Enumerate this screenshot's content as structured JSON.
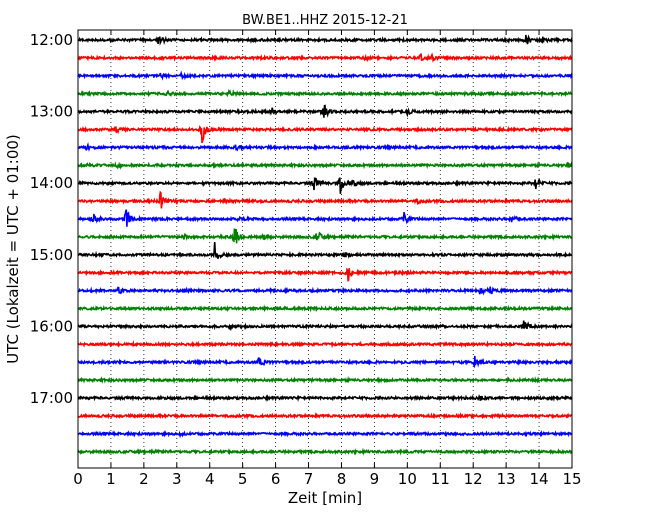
{
  "chart_data": {
    "type": "line",
    "title": "BW.BE1..HHZ 2015-12-21",
    "xlabel": "Zeit  [min]",
    "ylabel": "UTC (Lokalzeit = UTC + 01:00)",
    "xlim": [
      0,
      15
    ],
    "x_ticks": [
      "0",
      "1",
      "2",
      "3",
      "4",
      "5",
      "6",
      "7",
      "8",
      "9",
      "10",
      "11",
      "12",
      "13",
      "14",
      "15"
    ],
    "y_tick_labels": [
      "12:00",
      "13:00",
      "14:00",
      "15:00",
      "16:00",
      "17:00"
    ],
    "trace_colors": [
      "#000000",
      "#ff0000",
      "#0000ff",
      "#008000"
    ],
    "trace_interval_min": 15,
    "grid": "vertical dotted",
    "traces": [
      {
        "start": "12:00",
        "events": [
          {
            "t": 2.45,
            "amp": 6
          },
          {
            "t": 13.6,
            "amp": 6
          },
          {
            "t": 14.1,
            "amp": 3
          }
        ]
      },
      {
        "start": "12:15",
        "events": [
          {
            "t": 10.4,
            "amp": 4
          },
          {
            "t": 10.75,
            "amp": 3
          },
          {
            "t": 8.7,
            "amp": 2
          }
        ]
      },
      {
        "start": "12:30",
        "events": [
          {
            "t": 2.5,
            "amp": 3
          },
          {
            "t": 3.15,
            "amp": 3
          }
        ]
      },
      {
        "start": "12:45",
        "events": [
          {
            "t": 4.6,
            "amp": 3
          },
          {
            "t": 2.7,
            "amp": 3
          }
        ]
      },
      {
        "start": "13:00",
        "events": [
          {
            "t": 7.45,
            "amp": 9
          },
          {
            "t": 5.9,
            "amp": 3
          },
          {
            "t": 10.0,
            "amp": 3
          }
        ]
      },
      {
        "start": "13:15",
        "events": [
          {
            "t": 3.75,
            "amp": 15
          },
          {
            "t": 1.15,
            "amp": 3
          }
        ]
      },
      {
        "start": "13:30",
        "events": [
          {
            "t": 0.25,
            "amp": 3
          },
          {
            "t": 4.8,
            "amp": 4
          }
        ]
      },
      {
        "start": "13:45",
        "events": [
          {
            "t": 0.15,
            "amp": 4
          },
          {
            "t": 1.2,
            "amp": 2
          },
          {
            "t": 14.85,
            "amp": 3
          }
        ]
      },
      {
        "start": "14:00",
        "events": [
          {
            "t": 7.15,
            "amp": 8
          },
          {
            "t": 7.95,
            "amp": 12
          },
          {
            "t": 13.9,
            "amp": 6
          },
          {
            "t": 8.35,
            "amp": 4
          }
        ]
      },
      {
        "start": "14:15",
        "events": [
          {
            "t": 2.5,
            "amp": 9
          },
          {
            "t": 4.4,
            "amp": 2
          },
          {
            "t": 10.3,
            "amp": 2
          }
        ]
      },
      {
        "start": "14:30",
        "events": [
          {
            "t": 0.45,
            "amp": 7
          },
          {
            "t": 1.45,
            "amp": 12
          },
          {
            "t": 9.9,
            "amp": 6
          },
          {
            "t": 13.15,
            "amp": 6
          },
          {
            "t": 4.9,
            "amp": 3
          }
        ]
      },
      {
        "start": "14:45",
        "events": [
          {
            "t": 4.75,
            "amp": 12
          },
          {
            "t": 7.25,
            "amp": 7
          },
          {
            "t": 3.2,
            "amp": 3
          },
          {
            "t": 5.6,
            "amp": 3
          }
        ]
      },
      {
        "start": "15:00",
        "events": [
          {
            "t": 4.15,
            "amp": 12
          },
          {
            "t": 8.1,
            "amp": 3
          }
        ]
      },
      {
        "start": "15:15",
        "events": [
          {
            "t": 8.2,
            "amp": 8
          }
        ]
      },
      {
        "start": "15:30",
        "events": [
          {
            "t": 1.2,
            "amp": 4
          },
          {
            "t": 12.2,
            "amp": 4
          },
          {
            "t": 12.5,
            "amp": 4
          },
          {
            "t": 3.2,
            "amp": 2
          }
        ]
      },
      {
        "start": "15:45",
        "events": []
      },
      {
        "start": "16:00",
        "events": [
          {
            "t": 13.55,
            "amp": 10
          },
          {
            "t": 4.6,
            "amp": 2
          }
        ]
      },
      {
        "start": "16:15",
        "events": []
      },
      {
        "start": "16:30",
        "events": [
          {
            "t": 5.5,
            "amp": 7
          },
          {
            "t": 12.05,
            "amp": 8
          }
        ]
      },
      {
        "start": "16:45",
        "events": []
      },
      {
        "start": "17:00",
        "events": [
          {
            "t": 12.2,
            "amp": 2
          }
        ]
      },
      {
        "start": "17:15",
        "events": []
      },
      {
        "start": "17:30",
        "events": [
          {
            "t": 3.1,
            "amp": 1
          }
        ]
      },
      {
        "start": "17:45",
        "events": []
      }
    ]
  }
}
